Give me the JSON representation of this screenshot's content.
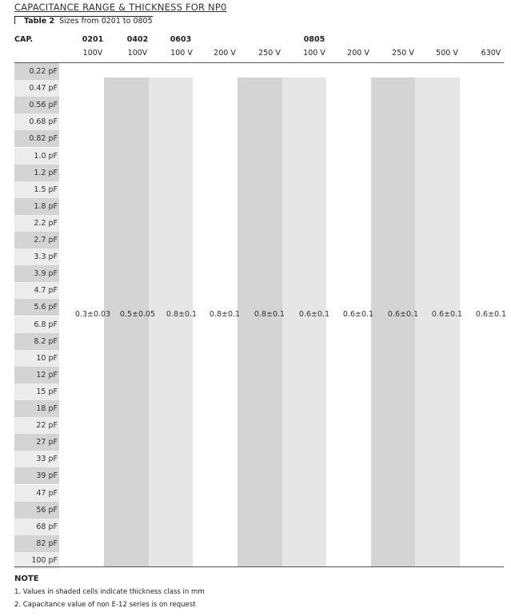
{
  "title": "CAPACITANCE RANGE & THICKNESS FOR NP0",
  "table": {
    "caption_label": "Table 2",
    "caption_text": "Sizes from 0201 to 0805",
    "cap_header": "CAP.",
    "sizes": [
      "0201",
      "0402",
      "0603",
      "0805"
    ],
    "voltages": [
      "100V",
      "100V",
      "100 V",
      "200 V",
      "250 V",
      "100 V",
      "200 V",
      "250 V",
      "500 V",
      "630V"
    ],
    "capacitances": [
      "0.22 pF",
      "0.47 pF",
      "0.56 pF",
      "0.68 pF",
      "0.82 pF",
      "1.0 pF",
      "1.2 pF",
      "1.5 pF",
      "1.8 pF",
      "2.2 pF",
      "2.7 pF",
      "3.3 pF",
      "3.9 pF",
      "4.7 pF",
      "5.6 pF",
      "6.8 pF",
      "8.2 pF",
      "10 pF",
      "12 pF",
      "15 pF",
      "18 pF",
      "22 pF",
      "27 pF",
      "33 pF",
      "39 pF",
      "47 pF",
      "56 pF",
      "68 pF",
      "82 pF",
      "100 pF"
    ],
    "thickness": [
      "0.3±0.03",
      "0.5±0.05",
      "0.8±0.1",
      "0.8±0.1",
      "0.8±0.1",
      "0.6±0.1",
      "0.6±0.1",
      "0.6±0.1",
      "0.6±0.1",
      "0.6±0.1"
    ]
  },
  "notes": {
    "heading": "NOTE",
    "items": [
      "1. Values in shaded cells indicate thickness class in mm",
      "2. Capacitance value of non E-12 series is on request"
    ]
  },
  "colors": {
    "shade_dark": "#d4d4d4",
    "shade_light": "#e6e6e6"
  }
}
